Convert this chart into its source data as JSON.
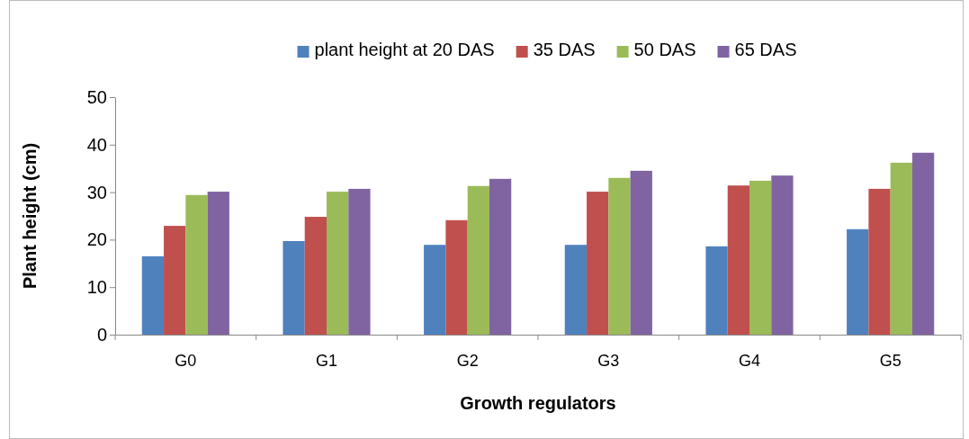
{
  "chart_data": {
    "type": "bar",
    "xlabel": "Growth regulators",
    "ylabel": "Plant height (cm)",
    "categories": [
      "G0",
      "G1",
      "G2",
      "G3",
      "G4",
      "G5"
    ],
    "series": [
      {
        "name": "plant height at 20 DAS",
        "color": "#4f81bd",
        "values": [
          16.5,
          19.7,
          18.9,
          18.9,
          18.6,
          22.2
        ]
      },
      {
        "name": "35 DAS",
        "color": "#c0504d",
        "values": [
          22.9,
          24.8,
          24.1,
          30.1,
          31.4,
          30.7
        ]
      },
      {
        "name": "50 DAS",
        "color": "#9bbb59",
        "values": [
          29.4,
          30.1,
          31.3,
          33.0,
          32.4,
          36.2
        ]
      },
      {
        "name": "65 DAS",
        "color": "#8064a2",
        "values": [
          30.1,
          30.7,
          32.8,
          34.5,
          33.5,
          38.3
        ]
      }
    ],
    "ylim": [
      0,
      50
    ],
    "yticks": [
      0,
      10,
      20,
      30,
      40,
      50
    ],
    "grid": false,
    "legend": "top"
  }
}
